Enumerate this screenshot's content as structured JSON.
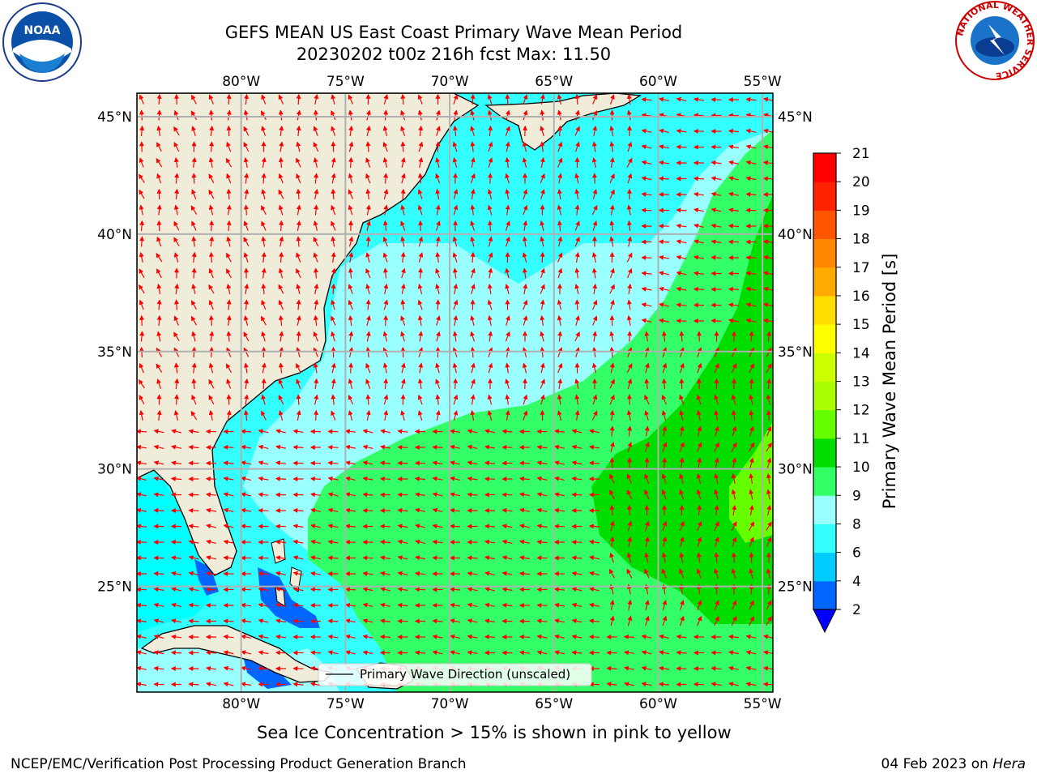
{
  "title": {
    "line1": "GEFS MEAN US East Coast Primary Wave Mean Period",
    "line2": "20230202 t00z 216h fcst   Max: 11.50"
  },
  "map": {
    "lon_ticks": [
      "80°W",
      "75°W",
      "70°W",
      "65°W",
      "60°W",
      "55°W"
    ],
    "lat_ticks": [
      "45°N",
      "40°N",
      "35°N",
      "30°N",
      "25°N"
    ],
    "lon_range": [
      -85,
      -54.5
    ],
    "lat_range": [
      20.5,
      46
    ],
    "legend_label": "Primary Wave Direction (unscaled)",
    "arrow_color": "#ff0000",
    "land_color": "#efedda"
  },
  "colorbar": {
    "label": "Primary Wave Mean Period [s]",
    "ticks": [
      "2",
      "4",
      "6",
      "8",
      "9",
      "10",
      "11",
      "12",
      "13",
      "14",
      "15",
      "16",
      "17",
      "18",
      "19",
      "20",
      "21"
    ],
    "colors": [
      "#0066ff",
      "#00ccff",
      "#33ffff",
      "#99ffff",
      "#33ff66",
      "#00dd00",
      "#66ff00",
      "#aaff00",
      "#ccff00",
      "#ffff00",
      "#ffdd00",
      "#ffaa00",
      "#ff8800",
      "#ff5500",
      "#ff2200",
      "#ff0000"
    ],
    "under_color": "#0000ff"
  },
  "caption": "Sea Ice Concentration > 15% is shown in pink to yellow",
  "footer": {
    "left": "NCEP/EMC/Verification Post Processing Product Generation Branch",
    "right_date": "04 Feb 2023 on ",
    "right_host": "Hera"
  },
  "logos": {
    "noaa": "NOAA",
    "nws_ring": "NATIONAL WEATHER SERVICE"
  }
}
